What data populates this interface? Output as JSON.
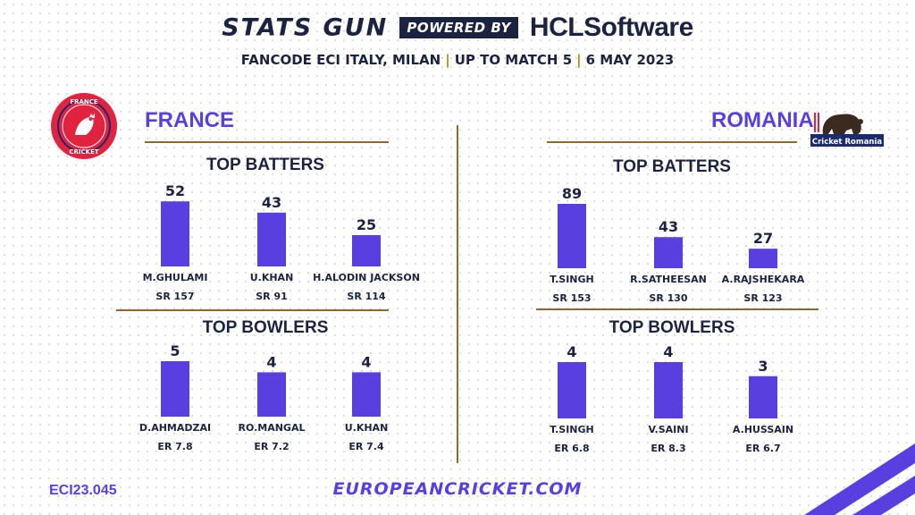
{
  "header": {
    "brand": "STATS GUN",
    "powered_by": "POWERED BY",
    "sponsor": "HCLSoftware",
    "event": "FANCODE ECI ITALY, MILAN",
    "scope": "UP TO MATCH 5",
    "date": "6 MAY 2023"
  },
  "teams": [
    {
      "name": "FRANCE",
      "logo_text_top": "FRANCE",
      "logo_text_bottom": "CRICKET",
      "batters_title": "TOP BATTERS",
      "bowlers_title": "TOP BOWLERS"
    },
    {
      "name": "ROMANIA",
      "logo_text": "Cricket Romania",
      "batters_title": "TOP BATTERS",
      "bowlers_title": "TOP BOWLERS"
    }
  ],
  "chart_data": [
    {
      "type": "bar",
      "title": "TOP BATTERS",
      "team": "FRANCE",
      "categories": [
        "M.GHULAMI",
        "U.KHAN",
        "H.ALODIN JACKSON"
      ],
      "values": [
        52,
        43,
        25
      ],
      "sublabels": [
        "SR 157",
        "SR 91",
        "SR 114"
      ],
      "ylim": [
        0,
        60
      ],
      "color": "#5a3fe0"
    },
    {
      "type": "bar",
      "title": "TOP BOWLERS",
      "team": "FRANCE",
      "categories": [
        "D.AHMADZAI",
        "RO.MANGAL",
        "U.KHAN"
      ],
      "values": [
        5,
        4,
        4
      ],
      "sublabels": [
        "ER 7.8",
        "ER 7.2",
        "ER 7.4"
      ],
      "ylim": [
        0,
        5
      ],
      "color": "#5a3fe0"
    },
    {
      "type": "bar",
      "title": "TOP BATTERS",
      "team": "ROMANIA",
      "categories": [
        "T.SINGH",
        "R.SATHEESAN",
        "A.RAJSHEKARA"
      ],
      "values": [
        89,
        43,
        27
      ],
      "sublabels": [
        "SR 153",
        "SR 130",
        "SR 123"
      ],
      "ylim": [
        0,
        89
      ],
      "color": "#5a3fe0"
    },
    {
      "type": "bar",
      "title": "TOP BOWLERS",
      "team": "ROMANIA",
      "categories": [
        "T.SINGH",
        "V.SAINI",
        "A.HUSSAIN"
      ],
      "values": [
        4,
        4,
        3
      ],
      "sublabels": [
        "ER 6.8",
        "ER 8.3",
        "ER 6.7"
      ],
      "ylim": [
        0,
        4
      ],
      "color": "#5a3fe0"
    }
  ],
  "footer": {
    "code": "ECI23.045",
    "website": "EUROPEANCRICKET.COM"
  }
}
